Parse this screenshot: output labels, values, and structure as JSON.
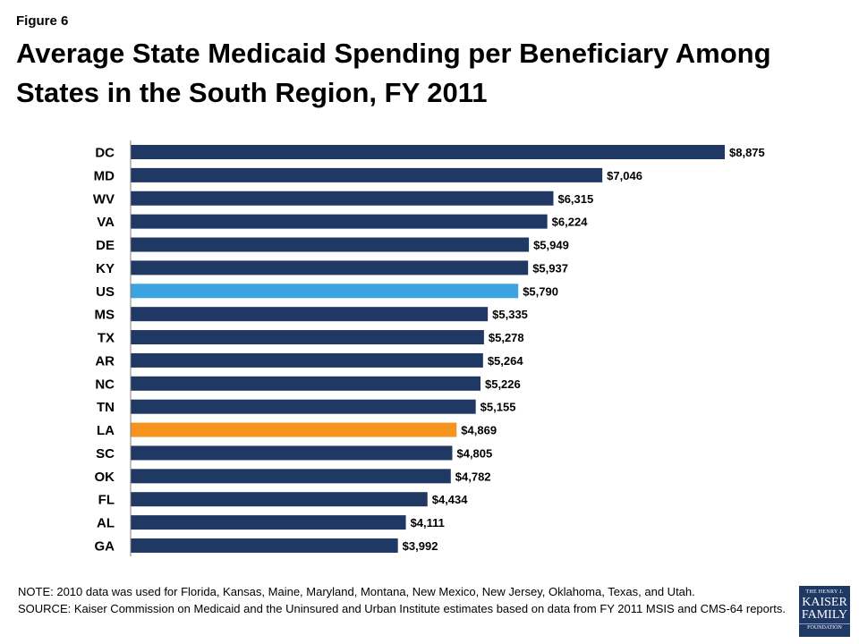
{
  "figure_label": "Figure 6",
  "title": "Average State Medicaid Spending per Beneficiary Among States in the South Region, FY 2011",
  "note": "NOTE: 2010 data was used for Florida, Kansas, Maine, Maryland, Montana, New Mexico, New Jersey, Oklahoma, Texas, and Utah.",
  "source": "SOURCE: Kaiser Commission on Medicaid and the Uninsured and Urban Institute estimates based on data from FY 2011 MSIS and CMS-64 reports.",
  "logo": {
    "line1": "THE HENRY J.",
    "line2": "KAISER",
    "line3": "FAMILY",
    "line4": "FOUNDATION"
  },
  "colors": {
    "default": "#1f3864",
    "us": "#3ba3e0",
    "highlight": "#f7941d"
  },
  "chart_data": {
    "type": "bar",
    "orientation": "horizontal",
    "categories": [
      "DC",
      "MD",
      "WV",
      "VA",
      "DE",
      "KY",
      "US",
      "MS",
      "TX",
      "AR",
      "NC",
      "TN",
      "LA",
      "SC",
      "OK",
      "FL",
      "AL",
      "GA"
    ],
    "values": [
      8875,
      7046,
      6315,
      6224,
      5949,
      5937,
      5790,
      5335,
      5278,
      5264,
      5226,
      5155,
      4869,
      4805,
      4782,
      4434,
      4111,
      3992
    ],
    "labels": [
      "$8,875",
      "$7,046",
      "$6,315",
      "$6,224",
      "$5,949",
      "$5,937",
      "$5,790",
      "$5,335",
      "$5,278",
      "$5,264",
      "$5,226",
      "$5,155",
      "$4,869",
      "$4,805",
      "$4,782",
      "$4,434",
      "$4,111",
      "$3,992"
    ],
    "highlighted": {
      "US": "us",
      "LA": "highlight"
    },
    "xlim": [
      0,
      8875
    ],
    "grid": false
  }
}
